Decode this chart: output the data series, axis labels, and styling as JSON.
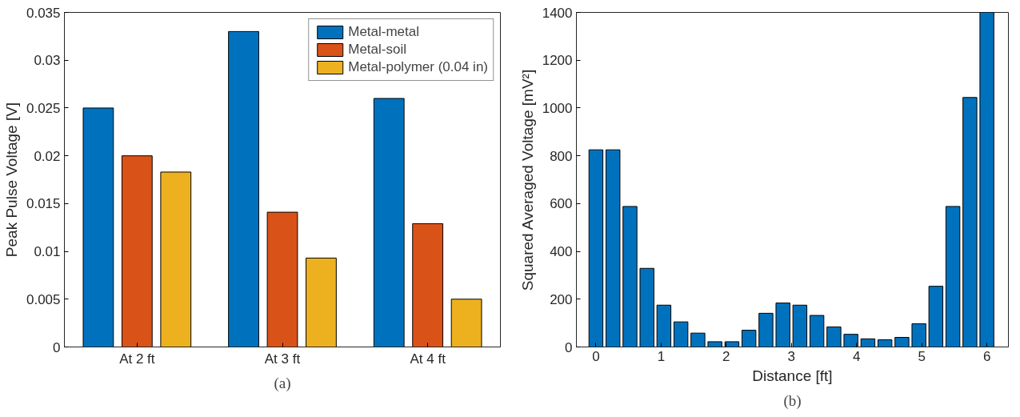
{
  "chart_data": [
    {
      "type": "bar",
      "ylabel": "Peak Pulse Voltage [V]",
      "categories": [
        "At 2 ft",
        "At 3 ft",
        "At 4 ft"
      ],
      "series": [
        {
          "name": "Metal-metal",
          "color": "#0072bd",
          "values": [
            0.025,
            0.033,
            0.026
          ]
        },
        {
          "name": "Metal-soil",
          "color": "#d95319",
          "values": [
            0.02,
            0.0141,
            0.0129
          ]
        },
        {
          "name": "Metal-polymer (0.04 in)",
          "color": "#edb120",
          "values": [
            0.0183,
            0.0093,
            0.005
          ]
        }
      ],
      "ylim": [
        0,
        0.035
      ],
      "yticks": [
        0,
        0.005,
        0.01,
        0.015,
        0.02,
        0.025,
        0.03,
        0.035
      ],
      "legend": "top right",
      "grid": false,
      "annotations": [
        "(a)"
      ]
    },
    {
      "type": "bar",
      "xlabel": "Distance [ft]",
      "ylabel": "Squared Averaged Voltage [mV²]",
      "x": [
        0,
        0.261,
        0.522,
        0.783,
        1.043,
        1.304,
        1.565,
        1.826,
        2.087,
        2.348,
        2.609,
        2.87,
        3.13,
        3.391,
        3.652,
        3.913,
        4.174,
        4.435,
        4.696,
        4.957,
        5.217,
        5.478,
        5.739,
        6
      ],
      "values": [
        825,
        825,
        588,
        329,
        175,
        105,
        58,
        22,
        22,
        70,
        141,
        184,
        175,
        132,
        84,
        53,
        34,
        30,
        40,
        97,
        254,
        588,
        1044,
        1400
      ],
      "color": "#0072bd",
      "xlim": [
        -0.3,
        6.33
      ],
      "xticks": [
        0,
        1,
        2,
        3,
        4,
        5,
        6
      ],
      "ylim": [
        0,
        1400
      ],
      "yticks": [
        0,
        200,
        400,
        600,
        800,
        1000,
        1200,
        1400
      ],
      "grid": false,
      "annotations": [
        "(b)"
      ]
    }
  ]
}
